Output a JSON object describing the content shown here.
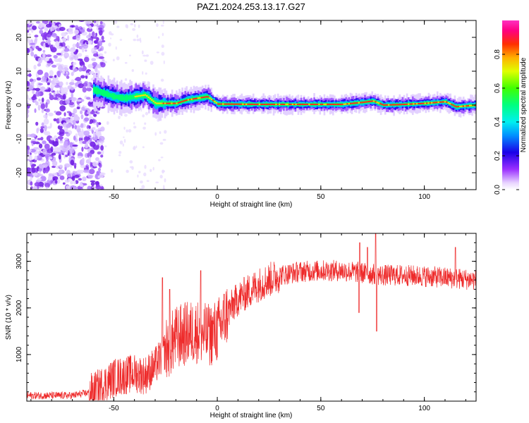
{
  "title": "PAZ1.2024.253.13.17.G27",
  "colors": {
    "snr_line": "#ee2a2a",
    "axis": "#000000",
    "spectrogram_background": "#ffffff"
  },
  "colorbar": {
    "label": "Normalized spectral amplitude",
    "ticks": [
      "0.0",
      "0.2",
      "0.4",
      "0.6",
      "0.8"
    ],
    "range": [
      0,
      1
    ],
    "colormap": "gist_ncar-like: white/lavender → violet → blue → cyan → green → yellow → orange → red → magenta"
  },
  "chart_data": [
    {
      "type": "heatmap",
      "title": "PAZ1.2024.253.13.17.G27",
      "xlabel": "Height of straight line (km)",
      "ylabel": "Frequency (Hz)",
      "xlim": [
        -92,
        125
      ],
      "ylim": [
        -25,
        25
      ],
      "xticks": [
        "-50",
        "0",
        "50",
        "100"
      ],
      "yticks": [
        "-20",
        "-10",
        "0",
        "10",
        "20"
      ],
      "xtick_values": [
        -50,
        0,
        50,
        100
      ],
      "ytick_values": [
        -20,
        -10,
        0,
        10,
        20
      ],
      "noise_region_x": [
        -92,
        -55
      ],
      "signal_ridge": [
        {
          "x": -60,
          "f": 4.5
        },
        {
          "x": -55,
          "f": 3.5
        },
        {
          "x": -50,
          "f": 2.5
        },
        {
          "x": -45,
          "f": 2.0
        },
        {
          "x": -40,
          "f": 2.5
        },
        {
          "x": -35,
          "f": 3.0
        },
        {
          "x": -30,
          "f": 0.5
        },
        {
          "x": -25,
          "f": 0.5
        },
        {
          "x": -20,
          "f": 0.5
        },
        {
          "x": -15,
          "f": 1.5
        },
        {
          "x": -10,
          "f": 2.0
        },
        {
          "x": -5,
          "f": 2.5
        },
        {
          "x": 0,
          "f": 0.3
        },
        {
          "x": 20,
          "f": 0.2
        },
        {
          "x": 40,
          "f": 0.2
        },
        {
          "x": 60,
          "f": 0.2
        },
        {
          "x": 70,
          "f": 0.8
        },
        {
          "x": 75,
          "f": 1.2
        },
        {
          "x": 80,
          "f": 0.0
        },
        {
          "x": 90,
          "f": 0.2
        },
        {
          "x": 100,
          "f": 0.5
        },
        {
          "x": 110,
          "f": 1.0
        },
        {
          "x": 115,
          "f": -0.5
        },
        {
          "x": 125,
          "f": 0.0
        }
      ]
    },
    {
      "type": "line",
      "xlabel": "Height of straight line (km)",
      "ylabel": "SNR (10 * v/v)",
      "xlim": [
        -92,
        125
      ],
      "ylim": [
        0,
        3600
      ],
      "xticks": [
        "-50",
        "0",
        "50",
        "100"
      ],
      "yticks": [
        "1000",
        "2000",
        "3000"
      ],
      "xtick_values": [
        -50,
        0,
        50,
        100
      ],
      "ytick_values": [
        1000,
        2000,
        3000
      ],
      "series": [
        {
          "trend": [
            {
              "x": -92,
              "y": 120
            },
            {
              "x": -70,
              "y": 120
            },
            {
              "x": -60,
              "y": 200
            },
            {
              "x": -50,
              "y": 500
            },
            {
              "x": -40,
              "y": 600
            },
            {
              "x": -35,
              "y": 550
            },
            {
              "x": -30,
              "y": 750
            },
            {
              "x": -25,
              "y": 1100
            },
            {
              "x": -20,
              "y": 1350
            },
            {
              "x": -15,
              "y": 1450
            },
            {
              "x": -10,
              "y": 1500
            },
            {
              "x": -5,
              "y": 1400
            },
            {
              "x": 0,
              "y": 1500
            },
            {
              "x": 5,
              "y": 1900
            },
            {
              "x": 10,
              "y": 2200
            },
            {
              "x": 20,
              "y": 2500
            },
            {
              "x": 30,
              "y": 2700
            },
            {
              "x": 40,
              "y": 2780
            },
            {
              "x": 50,
              "y": 2800
            },
            {
              "x": 60,
              "y": 2800
            },
            {
              "x": 70,
              "y": 2750
            },
            {
              "x": 80,
              "y": 2700
            },
            {
              "x": 90,
              "y": 2700
            },
            {
              "x": 100,
              "y": 2680
            },
            {
              "x": 110,
              "y": 2650
            },
            {
              "x": 125,
              "y": 2600
            }
          ],
          "spikes": [
            {
              "x": -26.5,
              "y": 2650
            },
            {
              "x": -23,
              "y": 2400
            },
            {
              "x": -8,
              "y": 2800
            },
            {
              "x": -4,
              "y": 1600
            },
            {
              "x": 68.5,
              "y": 1900
            },
            {
              "x": 68.8,
              "y": 3400
            },
            {
              "x": 72.5,
              "y": 3300
            },
            {
              "x": 76.5,
              "y": 3600
            },
            {
              "x": 77,
              "y": 1500
            },
            {
              "x": 115,
              "y": 3300
            }
          ]
        }
      ]
    }
  ]
}
